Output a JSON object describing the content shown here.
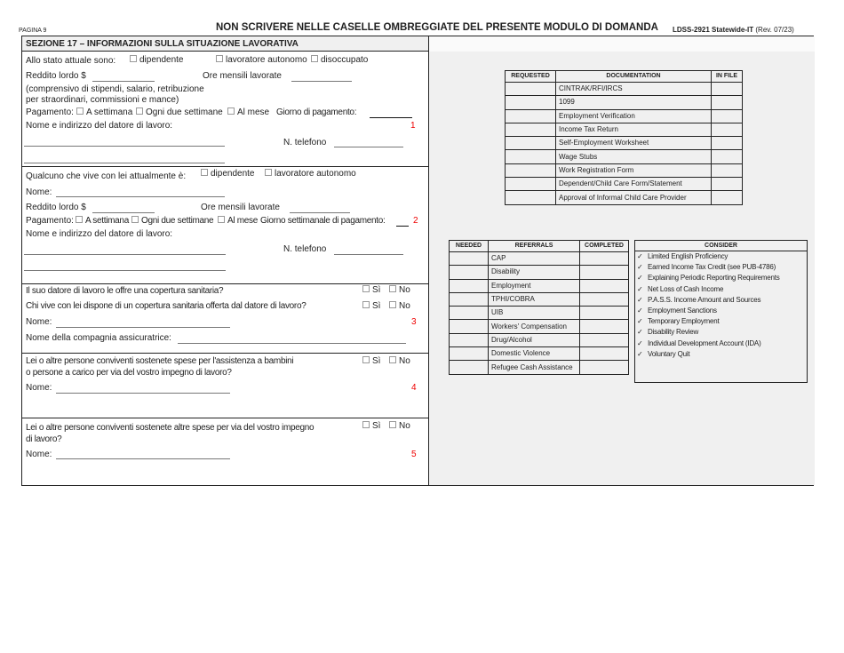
{
  "header": {
    "page": "PAGINA 9",
    "title": "NON SCRIVERE NELLE CASELLE OMBREGGIATE DEL PRESENTE MODULO DI DOMANDA",
    "form_id": "LDSS-2921 Statewide-IT",
    "revision": "(Rev. 07/23)"
  },
  "section": {
    "title": "SEZIONE 17 – INFORMAZIONI SULLA SITUAZIONE LAVORATIVA",
    "s1": {
      "status_label": "Allo stato attuale sono:",
      "opt_employee": "dipendente",
      "opt_self": "lavoratore autonomo",
      "opt_unemployed": "disoccupato",
      "gross": "Reddito lordo $",
      "hours": "Ore mensili lavorate",
      "note1": "(comprensivo di stipendi, salario, retribuzione",
      "note2": "per straordinari, commissioni e mance)",
      "pay": "Pagamento:",
      "weekly": "A settimana",
      "biweekly": "Ogni due settimane",
      "monthly": "Al mese",
      "payday": "Giorno di pagamento:",
      "employer": "Nome e indirizzo del datore di lavoro:",
      "phone": "N. telefono",
      "num": "1"
    },
    "s2": {
      "label": "Qualcuno che vive con lei attualmente è:",
      "opt_employee": "dipendente",
      "opt_self": "lavoratore autonomo",
      "name": "Nome:",
      "gross": "Reddito lordo $",
      "hours": "Ore mensili lavorate",
      "pay": "Pagamento:",
      "weekly": "A settimana",
      "biweekly": "Ogni due settimane",
      "monthly": "Al mese",
      "payday": "Giorno settimanale di pagamento:",
      "employer": "Nome e indirizzo del datore di lavoro:",
      "phone": "N. telefono",
      "num": "2"
    },
    "s3": {
      "q1": "Il suo datore di lavoro le offre una copertura sanitaria?",
      "q2": "Chi vive con lei dispone di un copertura sanitaria offerta dal datore di lavoro?",
      "yes": "Sì",
      "no": "No",
      "name": "Nome:",
      "insurer": "Nome della compagnia assicuratrice:",
      "num": "3"
    },
    "s4": {
      "q1": "Lei o altre persone conviventi sostenete spese per l'assistenza a bambini",
      "q2": "o persone a carico per via del vostro impegno di lavoro?",
      "yes": "Sì",
      "no": "No",
      "name": "Nome:",
      "num": "4"
    },
    "s5": {
      "q1": "Lei o altre persone conviventi sostenete altre spese per via del vostro impegno",
      "q2": "di lavoro?",
      "yes": "Sì",
      "no": "No",
      "name": "Nome:",
      "num": "5"
    }
  },
  "documentation": {
    "headers": [
      "REQUESTED",
      "DOCUMENTATION",
      "IN FILE"
    ],
    "rows": [
      "CINTRAK/RFI/IRCS",
      "1099",
      "Employment Verification",
      "Income Tax Return",
      "Self-Employment Worksheet",
      "Wage Stubs",
      "Work Registration Form",
      "Dependent/Child Care Form/Statement",
      "Approval of Informal Child Care Provider"
    ]
  },
  "referrals": {
    "headers": [
      "NEEDED",
      "REFERRALS",
      "COMPLETED"
    ],
    "rows": [
      "CAP",
      "Disability",
      "Employment",
      "TPHI/COBRA",
      "UIB",
      "Workers' Compensation",
      "Drug/Alcohol",
      "Domestic Violence",
      "Refugee Cash Assistance"
    ]
  },
  "consider": {
    "title": "CONSIDER",
    "check_icon": "checkmark-icon",
    "items": [
      "Limited English Proficiency",
      "Earned Income Tax Credit (see PUB-4786)",
      "Explaining Periodic Reporting Requirements",
      "Net Loss of Cash Income",
      "P.A.S.S. Income Amount and Sources",
      "Employment Sanctions",
      "Temporary Employment",
      "Disability Review",
      "Individual Development Account (IDA)",
      "Voluntary Quit"
    ]
  }
}
